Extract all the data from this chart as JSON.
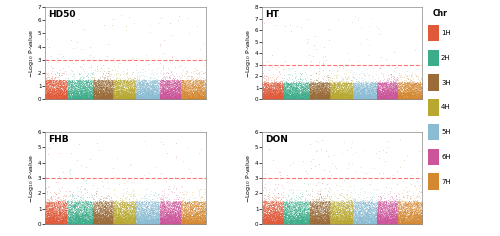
{
  "panels": [
    "HD50",
    "HT",
    "FHB",
    "DON"
  ],
  "chr_names": [
    "1H",
    "2H",
    "3H",
    "4H",
    "5H",
    "6H",
    "7H"
  ],
  "chr_colors": [
    "#E05A3A",
    "#3BAD8A",
    "#9B6B3A",
    "#B8A830",
    "#8ABCD4",
    "#CC5599",
    "#D48830"
  ],
  "chr_sizes": [
    1000,
    1200,
    950,
    1050,
    1100,
    980,
    1150
  ],
  "threshold": 3.0,
  "ylim_tops": [
    7,
    8,
    6,
    6
  ],
  "seed": 42,
  "n_snps_per_chr": 3000,
  "background_color": "#FFFFFF",
  "dashed_color": "#FF6666",
  "threshold_linewidth": 0.8,
  "point_size": 0.15,
  "point_alpha": 0.7
}
